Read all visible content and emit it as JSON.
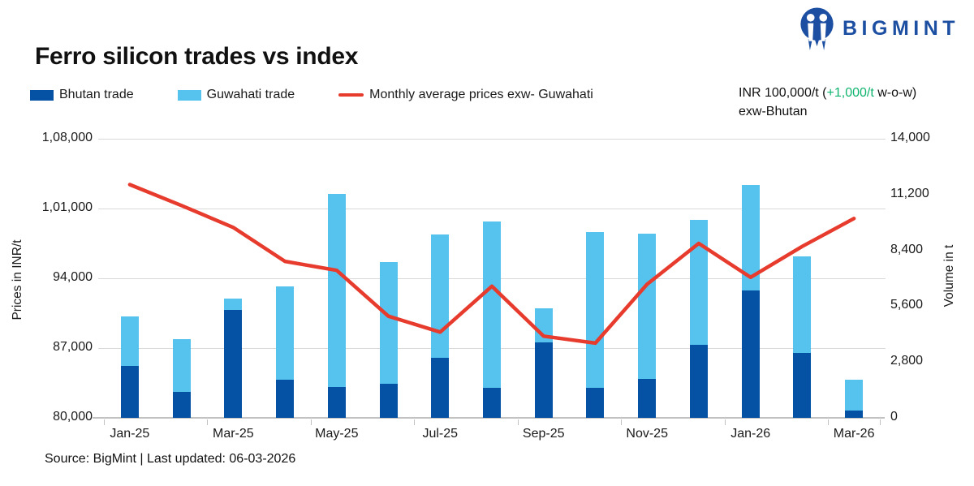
{
  "brand": {
    "name": "BIGMINT",
    "color": "#1c4fa1"
  },
  "title": "Ferro silicon trades vs index",
  "legend": [
    {
      "label": "Bhutan trade",
      "swatch": "box",
      "color": "#0551a3"
    },
    {
      "label": "Guwahati trade",
      "swatch": "box",
      "color": "#55c3ee"
    },
    {
      "label": "Monthly average prices exw- Guwahati",
      "swatch": "line",
      "color": "#e73b2d"
    }
  ],
  "callout": {
    "line1_prefix": "INR 100,000/t (",
    "line1_change": "+1,000/t",
    "line1_suffix": " w-o-w)",
    "line2": "exw-Bhutan",
    "change_color": "#0eb46e"
  },
  "source": "Source: BigMint | Last updated: 06-03-2026",
  "chart_data": {
    "type": "bar",
    "subtype": "stacked-bar-with-line-combo",
    "categories": [
      "Jan-25",
      "Feb-25",
      "Mar-25",
      "Apr-25",
      "May-25",
      "Jun-25",
      "Jul-25",
      "Aug-25",
      "Sep-25",
      "Oct-25",
      "Nov-25",
      "Dec-25",
      "Jan-26",
      "Feb-26",
      "Mar-26"
    ],
    "x_axis": {
      "tick_labels": [
        "Jan-25",
        "Mar-25",
        "May-25",
        "Jul-25",
        "Sep-25",
        "Nov-25",
        "Jan-26",
        "Mar-26"
      ],
      "label_every_n_months": 2
    },
    "series": [
      {
        "name": "Bhutan trade",
        "type": "bar",
        "stack": "volume",
        "yaxis": "right",
        "color": "#0551a3",
        "values": [
          2600,
          1300,
          5400,
          1900,
          1550,
          1700,
          3000,
          1500,
          3800,
          1500,
          1950,
          3650,
          6400,
          3250,
          350
        ]
      },
      {
        "name": "Guwahati trade",
        "type": "bar",
        "stack": "volume",
        "yaxis": "right",
        "color": "#55c3ee",
        "values": [
          2500,
          2650,
          600,
          4700,
          9700,
          6100,
          6200,
          8350,
          1700,
          7800,
          7300,
          6300,
          5300,
          4850,
          1550
        ]
      },
      {
        "name": "Monthly average prices exw- Guwahati",
        "type": "line",
        "yaxis": "left",
        "color": "#e73b2d",
        "values": [
          103400,
          101300,
          99100,
          95700,
          94800,
          90200,
          88600,
          93200,
          88200,
          87500,
          93400,
          97500,
          94100,
          97200,
          100000
        ]
      }
    ],
    "left_axis": {
      "title": "Prices in INR/t",
      "min": 80000,
      "max": 108000,
      "tick_labels": [
        "1,08,000",
        "1,01,000",
        "94,000",
        "87,000",
        "80,000"
      ]
    },
    "right_axis": {
      "title": "Volume in t",
      "min": 0,
      "max": 14000,
      "tick_labels": [
        "14,000",
        "11,200",
        "8,400",
        "5,600",
        "2,800",
        "0"
      ]
    },
    "grid": true,
    "legend_position": "top-left"
  }
}
